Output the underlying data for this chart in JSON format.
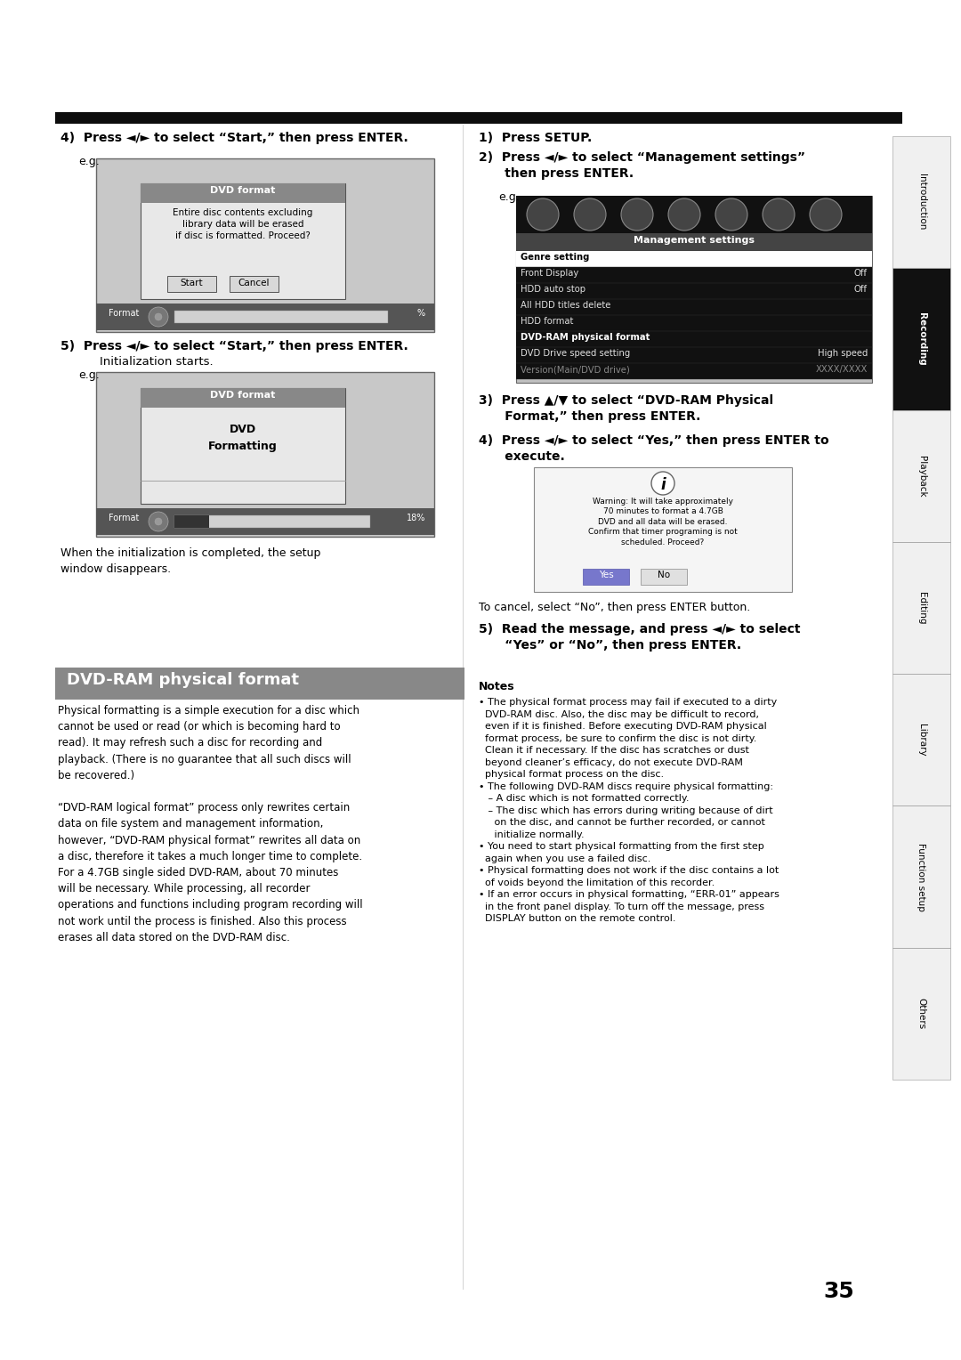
{
  "page_bg": "#ffffff",
  "page_number": "35",
  "left_heading4": "4)  Press ◄/► to select “Start,” then press ENTER.",
  "left_heading5": "5)  Press ◄/► to select “Start,” then press ENTER.",
  "left_sub5": "Initialization starts.",
  "left_footer": "When the initialization is completed, the setup\nwindow disappears.",
  "dvd_format_title": "DVD format",
  "dvd_format_body": "Entire disc contents excluding\nlibrary data will be erased\nif disc is formatted. Proceed?",
  "dvd_format_btn1": "Start",
  "dvd_format_btn2": "Cancel",
  "dvd_format2_title": "DVD format",
  "dvd_format2_body": "DVD\nFormatting",
  "format_bar_label": "Format",
  "format_bar_pct": "18%",
  "right_heading1": "1)  Press SETUP.",
  "right_heading2": "2)  Press ◄/► to select “Management settings”\n      then press ENTER.",
  "right_heading3": "3)  Press ▲/▼ to select “DVD-RAM Physical\n      Format,” then press ENTER.",
  "right_heading4": "4)  Press ◄/► to select “Yes,” then press ENTER to\n      execute.",
  "right_footer": "To cancel, select “No”, then press ENTER button.",
  "right_heading5": "5)  Read the message, and press ◄/► to select\n      “Yes” or “No”, then press ENTER.",
  "mgmt_title": "Management settings",
  "mgmt_rows": [
    [
      "Genre setting",
      ""
    ],
    [
      "Front Display",
      "Off"
    ],
    [
      "HDD auto stop",
      "Off"
    ],
    [
      "All HDD titles delete",
      ""
    ],
    [
      "HDD format",
      ""
    ],
    [
      "DVD-RAM physical format",
      ""
    ],
    [
      "DVD Drive speed setting",
      "High speed"
    ],
    [
      "Version(Main/DVD drive)",
      "XXXX/XXXX"
    ]
  ],
  "mgmt_highlight_row": 0,
  "mgmt_bold_row": 5,
  "warn_text": "Warning: It will take approximately\n70 minutes to format a 4.7GB\nDVD and all data will be erased.\nConfirm that timer programing is not\nscheduled. Proceed?",
  "warn_btn1": "Yes",
  "warn_btn2": "No",
  "section_title": "DVD-RAM physical format",
  "left_body": "Physical formatting is a simple execution for a disc which\ncannot be used or read (or which is becoming hard to\nread). It may refresh such a disc for recording and\nplayback. (There is no guarantee that all such discs will\nbe recovered.)\n\n“DVD-RAM logical format” process only rewrites certain\ndata on file system and management information,\nhowever, “DVD-RAM physical format” rewrites all data on\na disc, therefore it takes a much longer time to complete.\nFor a 4.7GB single sided DVD-RAM, about 70 minutes\nwill be necessary. While processing, all recorder\noperations and functions including program recording will\nnot work until the process is finished. Also this process\nerases all data stored on the DVD-RAM disc.",
  "notes_title": "Notes",
  "notes_body": "• The physical format process may fail if executed to a dirty\n  DVD-RAM disc. Also, the disc may be difficult to record,\n  even if it is finished. Before executing DVD-RAM physical\n  format process, be sure to confirm the disc is not dirty.\n  Clean it if necessary. If the disc has scratches or dust\n  beyond cleaner’s efficacy, do not execute DVD-RAM\n  physical format process on the disc.\n• The following DVD-RAM discs require physical formatting:\n   – A disc which is not formatted correctly.\n   – The disc which has errors during writing because of dirt\n     on the disc, and cannot be further recorded, or cannot\n     initialize normally.\n• You need to start physical formatting from the first step\n  again when you use a failed disc.\n• Physical formatting does not work if the disc contains a lot\n  of voids beyond the limitation of this recorder.\n• If an error occurs in physical formatting, “ERR-01” appears\n  in the front panel display. To turn off the message, press\n  DISPLAY button on the remote control.",
  "sidebar_labels": [
    "Introduction",
    "Recording",
    "Playback",
    "Editing",
    "Library",
    "Function setup",
    "Others"
  ],
  "sidebar_active": 1
}
